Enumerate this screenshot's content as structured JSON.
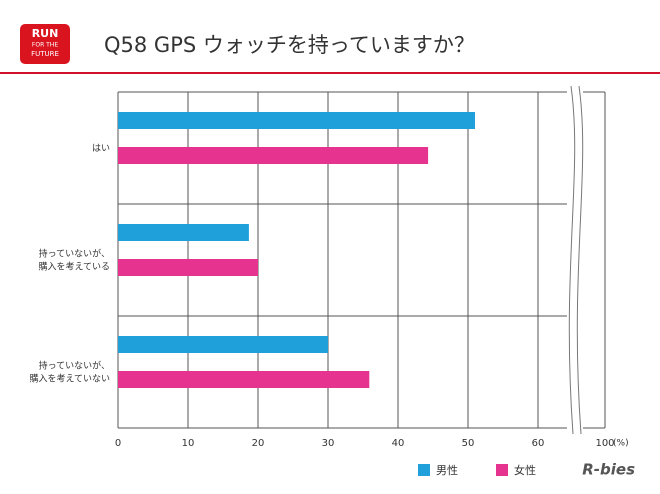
{
  "chart_data": {
    "type": "barh",
    "title": "Q58 GPS ウォッチを持っていますか？",
    "logo_text": [
      "RUN",
      "FOR THE",
      "FUTURE"
    ],
    "brand": "R-bies",
    "categories": [
      "はい",
      "持っていないが、\n購入を考えている",
      "持っていないが、\n購入を考えていない"
    ],
    "series": [
      {
        "name": "男性",
        "color": "#1fa0db",
        "values": [
          51,
          18.7,
          30
        ]
      },
      {
        "name": "女性",
        "color": "#e6338f",
        "values": [
          44.3,
          20,
          35.9
        ]
      }
    ],
    "xlim": [
      0,
      100
    ],
    "xticks": [
      0,
      10,
      20,
      30,
      40,
      50,
      60,
      100
    ],
    "x_unit": "(%)",
    "grid": true,
    "legend": "bottom-right"
  }
}
